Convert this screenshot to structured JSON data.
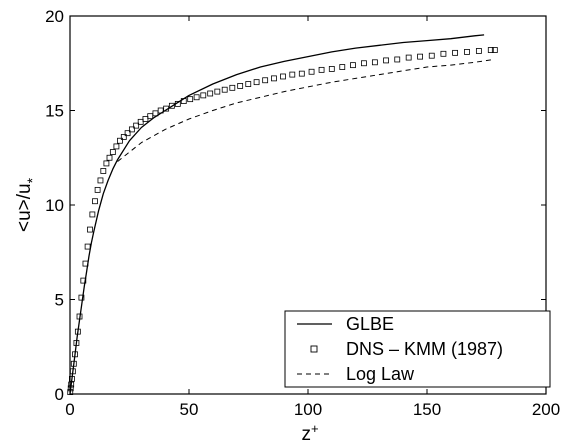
{
  "chart_data": {
    "type": "line",
    "xlabel": "z",
    "xlabel_superscript": "+",
    "ylabel": "<u>/u",
    "ylabel_subscript": "*",
    "xlim": [
      0,
      200
    ],
    "ylim": [
      0,
      20
    ],
    "x_ticks": [
      "0",
      "50",
      "100",
      "150",
      "200"
    ],
    "y_ticks": [
      "0",
      "5",
      "10",
      "15",
      "20"
    ],
    "x_tick_values": [
      0,
      50,
      100,
      150,
      200
    ],
    "y_tick_values": [
      0,
      5,
      10,
      15,
      20
    ],
    "grid": false,
    "legend_position": "bottom-right",
    "series": [
      {
        "name": "GLBE",
        "style": "solid",
        "x": [
          0,
          1,
          2,
          3,
          4,
          5,
          6,
          7,
          8,
          9,
          10,
          12,
          14,
          16,
          18,
          20,
          25,
          30,
          35,
          40,
          45,
          50,
          60,
          70,
          80,
          90,
          100,
          110,
          120,
          130,
          140,
          150,
          160,
          170,
          174
        ],
        "y": [
          0,
          1.0,
          2.0,
          3.0,
          3.9,
          4.8,
          5.7,
          6.5,
          7.3,
          8.0,
          8.6,
          9.7,
          10.6,
          11.3,
          11.9,
          12.4,
          13.4,
          14.1,
          14.6,
          15.0,
          15.4,
          15.8,
          16.4,
          16.9,
          17.3,
          17.6,
          17.85,
          18.1,
          18.3,
          18.45,
          18.6,
          18.7,
          18.8,
          18.95,
          19.0
        ]
      },
      {
        "name": "DNS – KMM (1987)",
        "style": "square-markers",
        "x": [
          0.1,
          0.3,
          0.5,
          0.8,
          1.2,
          1.6,
          2.1,
          2.7,
          3.3,
          4.0,
          4.8,
          5.6,
          6.5,
          7.4,
          8.4,
          9.4,
          10.5,
          11.6,
          12.8,
          14.0,
          15.3,
          16.6,
          18.0,
          19.5,
          21.0,
          22.6,
          24.2,
          26.0,
          27.8,
          29.7,
          31.7,
          33.7,
          35.9,
          38.1,
          40.4,
          42.8,
          45.3,
          47.8,
          50.5,
          53.2,
          56.0,
          58.9,
          61.9,
          65.0,
          68.2,
          71.5,
          74.9,
          78.4,
          82.0,
          85.7,
          89.5,
          93.4,
          97.4,
          101.5,
          105.7,
          110.0,
          114.4,
          118.9,
          123.5,
          128.1,
          132.8,
          137.5,
          142.3,
          147.1,
          152.0,
          156.9,
          161.8,
          166.8,
          171.8,
          176.8,
          178.5
        ],
        "y": [
          0.1,
          0.3,
          0.5,
          0.8,
          1.2,
          1.6,
          2.1,
          2.7,
          3.3,
          4.1,
          5.1,
          6.0,
          6.9,
          7.8,
          8.7,
          9.5,
          10.2,
          10.8,
          11.3,
          11.8,
          12.2,
          12.5,
          12.8,
          13.1,
          13.4,
          13.6,
          13.8,
          14.0,
          14.2,
          14.4,
          14.55,
          14.7,
          14.85,
          15.0,
          15.1,
          15.25,
          15.35,
          15.5,
          15.6,
          15.7,
          15.8,
          15.9,
          16.0,
          16.1,
          16.2,
          16.3,
          16.4,
          16.5,
          16.6,
          16.7,
          16.8,
          16.9,
          16.95,
          17.05,
          17.15,
          17.2,
          17.3,
          17.4,
          17.5,
          17.55,
          17.65,
          17.7,
          17.8,
          17.85,
          17.9,
          18.0,
          18.05,
          18.1,
          18.15,
          18.2,
          18.2
        ]
      },
      {
        "name": "Log Law",
        "style": "dashed",
        "x": [
          20,
          30,
          40,
          50,
          60,
          70,
          80,
          90,
          100,
          110,
          120,
          130,
          140,
          150,
          160,
          170,
          178
        ],
        "y": [
          12.3,
          13.3,
          14.0,
          14.55,
          15.0,
          15.4,
          15.7,
          16.0,
          16.25,
          16.5,
          16.7,
          16.9,
          17.1,
          17.3,
          17.4,
          17.55,
          17.7
        ]
      }
    ]
  }
}
